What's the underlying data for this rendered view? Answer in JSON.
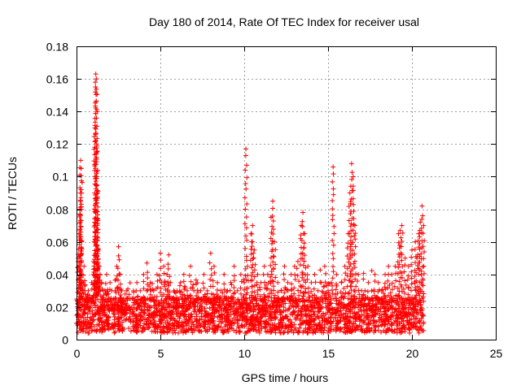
{
  "chart_data": {
    "type": "scatter",
    "title": "Day 180 of 2014, Rate Of TEC Index for receiver usal",
    "xlabel": "GPS time / hours",
    "ylabel": "ROTI / TECUs",
    "xlim": [
      0,
      25
    ],
    "ylim": [
      0,
      0.18
    ],
    "x_ticks": [
      0,
      5,
      10,
      15,
      20,
      25
    ],
    "x_tick_labels": [
      "0",
      "5",
      "10",
      "15",
      "20",
      "25"
    ],
    "y_ticks": [
      0,
      0.02,
      0.04,
      0.06,
      0.08,
      0.1,
      0.12,
      0.14,
      0.16,
      0.18
    ],
    "y_tick_labels": [
      "0",
      "0.02",
      "0.04",
      "0.06",
      "0.08",
      "0.1",
      "0.12",
      "0.14",
      "0.16",
      "0.18"
    ],
    "grid": true,
    "marker": "+",
    "color": "#ff0000",
    "series": [
      {
        "name": "ROTI",
        "x": [
          0.0,
          0.1,
          0.15,
          0.2,
          0.22,
          0.25,
          0.28,
          0.3,
          0.32,
          0.35,
          0.4,
          0.45,
          0.5,
          0.55,
          0.6,
          0.7,
          0.8,
          0.9,
          1.0,
          1.05,
          1.1,
          1.12,
          1.15,
          1.18,
          1.2,
          1.22,
          1.25,
          1.28,
          1.3,
          1.35,
          1.4,
          1.5,
          1.6,
          1.7,
          1.8,
          1.9,
          2.0,
          2.1,
          2.2,
          2.3,
          2.4,
          2.5,
          2.6,
          2.7,
          2.8,
          2.9,
          3.0,
          3.2,
          3.4,
          3.6,
          3.8,
          4.0,
          4.2,
          4.4,
          4.6,
          4.8,
          5.0,
          5.2,
          5.4,
          5.5,
          5.6,
          5.8,
          6.0,
          6.2,
          6.4,
          6.6,
          6.8,
          7.0,
          7.2,
          7.4,
          7.6,
          7.8,
          8.0,
          8.2,
          8.4,
          8.6,
          8.8,
          9.0,
          9.2,
          9.4,
          9.6,
          9.8,
          10.0,
          10.1,
          10.2,
          10.4,
          10.5,
          10.6,
          10.8,
          11.0,
          11.2,
          11.4,
          11.6,
          11.7,
          11.8,
          12.0,
          12.2,
          12.4,
          12.6,
          12.8,
          13.0,
          13.2,
          13.4,
          13.5,
          13.6,
          13.8,
          14.0,
          14.2,
          14.4,
          14.6,
          14.8,
          15.0,
          15.2,
          15.3,
          15.5,
          15.8,
          16.0,
          16.2,
          16.3,
          16.4,
          16.5,
          16.6,
          16.8,
          17.0,
          17.2,
          17.4,
          17.6,
          17.8,
          18.0,
          18.2,
          18.4,
          18.6,
          18.8,
          19.0,
          19.2,
          19.3,
          19.4,
          19.6,
          19.8,
          20.0,
          20.2,
          20.3,
          20.4,
          20.5,
          20.6,
          20.7
        ],
        "y": [
          0.01,
          0.05,
          0.065,
          0.08,
          0.09,
          0.11,
          0.105,
          0.06,
          0.04,
          0.03,
          0.035,
          0.045,
          0.03,
          0.025,
          0.02,
          0.03,
          0.025,
          0.035,
          0.04,
          0.06,
          0.13,
          0.152,
          0.163,
          0.16,
          0.12,
          0.1,
          0.09,
          0.073,
          0.055,
          0.045,
          0.04,
          0.035,
          0.03,
          0.03,
          0.04,
          0.028,
          0.035,
          0.03,
          0.025,
          0.03,
          0.045,
          0.057,
          0.04,
          0.03,
          0.025,
          0.028,
          0.03,
          0.025,
          0.03,
          0.035,
          0.03,
          0.04,
          0.047,
          0.035,
          0.03,
          0.04,
          0.053,
          0.045,
          0.04,
          0.052,
          0.035,
          0.03,
          0.03,
          0.035,
          0.04,
          0.03,
          0.045,
          0.03,
          0.035,
          0.03,
          0.04,
          0.03,
          0.053,
          0.045,
          0.035,
          0.03,
          0.04,
          0.03,
          0.035,
          0.045,
          0.03,
          0.04,
          0.035,
          0.117,
          0.045,
          0.065,
          0.07,
          0.055,
          0.04,
          0.035,
          0.045,
          0.04,
          0.075,
          0.085,
          0.06,
          0.035,
          0.03,
          0.045,
          0.035,
          0.04,
          0.045,
          0.048,
          0.07,
          0.078,
          0.065,
          0.045,
          0.035,
          0.04,
          0.03,
          0.035,
          0.045,
          0.03,
          0.035,
          0.106,
          0.04,
          0.035,
          0.045,
          0.065,
          0.09,
          0.108,
          0.1,
          0.07,
          0.04,
          0.03,
          0.03,
          0.035,
          0.03,
          0.04,
          0.035,
          0.03,
          0.04,
          0.045,
          0.04,
          0.045,
          0.065,
          0.067,
          0.07,
          0.05,
          0.045,
          0.055,
          0.06,
          0.05,
          0.065,
          0.072,
          0.082,
          0.07
        ]
      }
    ]
  }
}
